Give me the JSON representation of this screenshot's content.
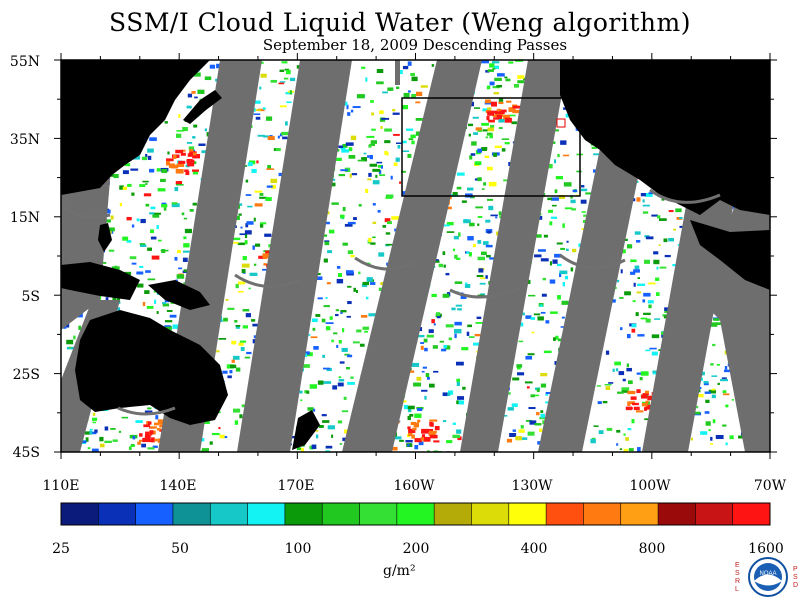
{
  "title": "SSM/I Cloud Liquid Water (Weng algorithm)",
  "subtitle": "September 18, 2009  Descending Passes",
  "lat_labels": [
    "55N",
    "35N",
    "15N",
    "5S",
    "25S",
    "45S"
  ],
  "lon_labels": [
    "110E",
    "140E",
    "170E",
    "160W",
    "130W",
    "100W",
    "70W"
  ],
  "colorbar": {
    "labels": [
      "25",
      "50",
      "100",
      "200",
      "400",
      "800",
      "1600"
    ],
    "unit": "g/m²",
    "colors": [
      "#0a1b7c",
      "#0a30b8",
      "#1560ff",
      "#0e9296",
      "#16c8c8",
      "#14f3f3",
      "#0a9a0a",
      "#20c820",
      "#34e034",
      "#22f522",
      "#b4aa08",
      "#dcdc08",
      "#ffff0a",
      "#ff5010",
      "#ff7a10",
      "#ffa014",
      "#9a0a0a",
      "#c81414",
      "#ff1414"
    ]
  },
  "logo": {
    "left_text": "ESRL",
    "right_text": "PSD",
    "center_text": "NOAA"
  },
  "map": {
    "lat_range": [
      -45,
      55
    ],
    "lon_range": [
      110,
      290
    ],
    "land_color": "#000000",
    "no_data_color": "#6e6e6e",
    "clear_color": "#ffffff"
  }
}
